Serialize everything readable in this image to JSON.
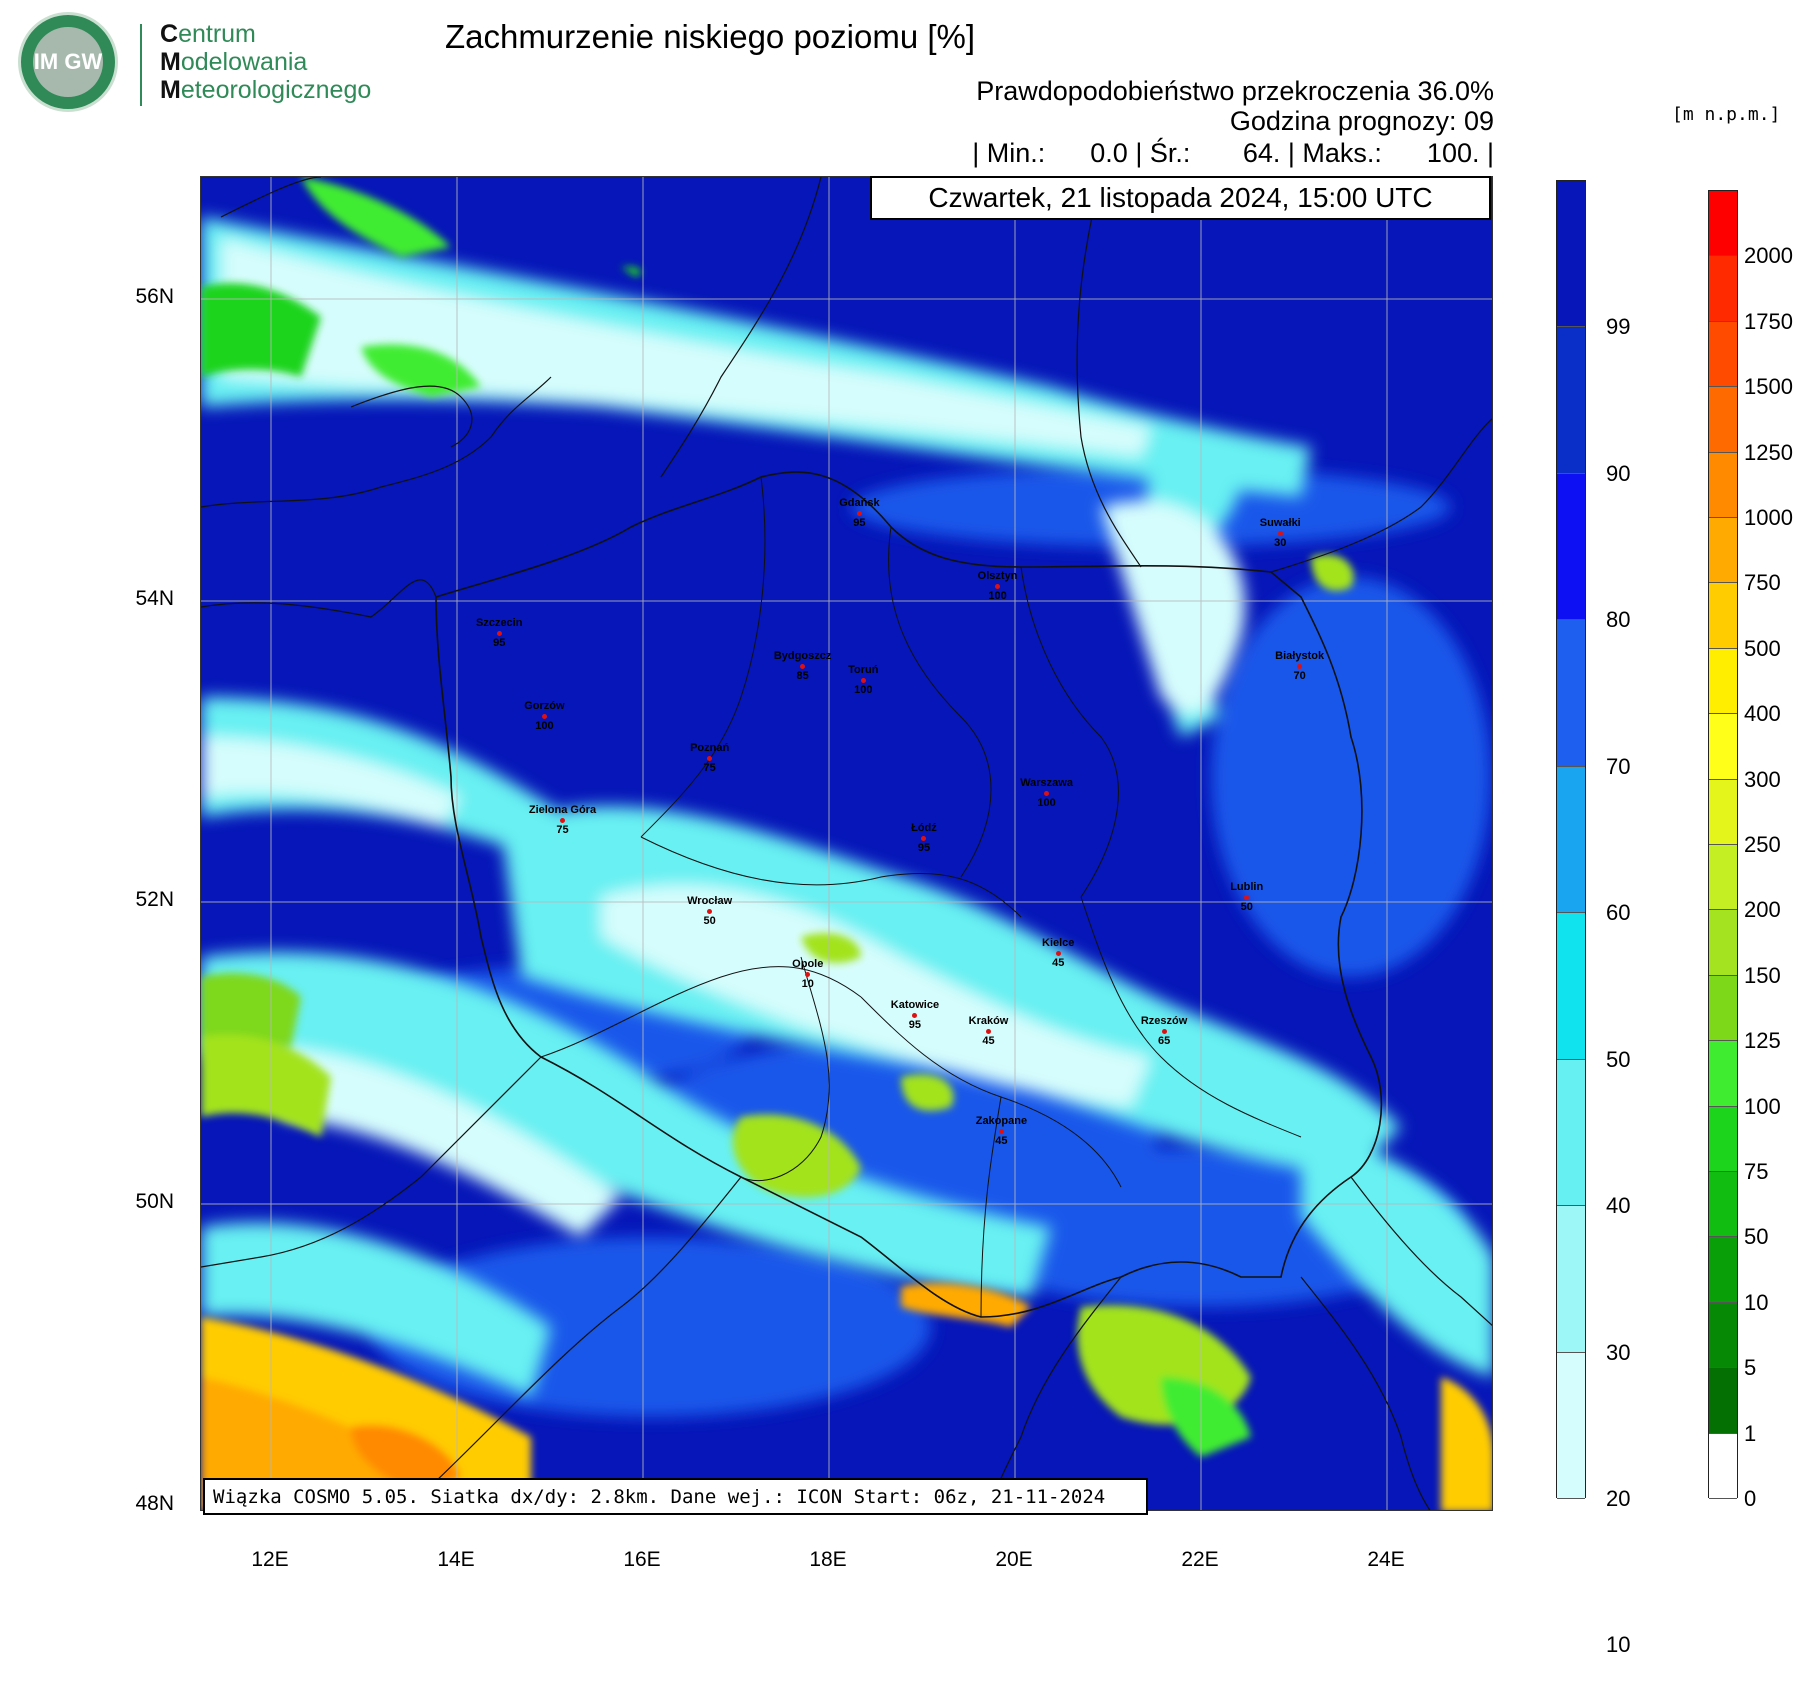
{
  "logo": {
    "mark": "IM GW",
    "line1_initial": "C",
    "line1_rest": "entrum",
    "line2_initial": "M",
    "line2_rest": "odelowania",
    "line3_initial": "M",
    "line3_rest": "eteorologicznego"
  },
  "title": "Zachmurzenie niskiego poziomu [%]",
  "probability_line": "Prawdopodobieństwo przekroczenia 36.0%",
  "forecast_hour_line": "Godzina prognozy: 09",
  "stats_line": "| Min.:      0.0 | Śr.:       64. | Maks.:      100. |",
  "date_line": "Czwartek, 21 listopada 2024, 15:00 UTC",
  "footer_line": "Wiązka COSMO 5.05. Siatka dx/dy: 2.8km. Dane wej.: ICON Start: 06z, 21-11-2024",
  "units_label": "[m n.p.m.]",
  "lat_ticks": [
    "56N",
    "54N",
    "52N",
    "50N",
    "48N"
  ],
  "lon_ticks": [
    "12E",
    "14E",
    "16E",
    "18E",
    "20E",
    "22E",
    "24E"
  ],
  "cloud_legend": {
    "labels": [
      "99",
      "90",
      "80",
      "70",
      "60",
      "50",
      "40",
      "30",
      "20",
      "10"
    ],
    "colors": [
      "#0616b8",
      "#0a2fc8",
      "#0c10f2",
      "#1f5ff0",
      "#19a5f0",
      "#10e3ee",
      "#67f0f2",
      "#9ef7f7",
      "#d6fdfd"
    ]
  },
  "terrain_legend": {
    "labels": [
      "2000",
      "1750",
      "1500",
      "1250",
      "1000",
      "750",
      "500",
      "400",
      "300",
      "250",
      "200",
      "150",
      "125",
      "100",
      "75",
      "50",
      "10",
      "5",
      "1",
      "0"
    ],
    "colors": [
      "#ff0000",
      "#ff2a00",
      "#ff4b00",
      "#ff6a00",
      "#ff8a00",
      "#ffaa00",
      "#ffcc00",
      "#ffee00",
      "#ffff1a",
      "#e3f51a",
      "#c4ef22",
      "#a3e31f",
      "#7ed81a",
      "#40ec30",
      "#1cd41c",
      "#10bd10",
      "#089f08",
      "#068a06",
      "#047004",
      "#ffffff"
    ]
  },
  "cities": [
    {
      "name": "Gdańsk",
      "value": "95"
    },
    {
      "name": "Suwałki",
      "value": "30"
    },
    {
      "name": "Olsztyn",
      "value": "100"
    },
    {
      "name": "Szczecin",
      "value": "95"
    },
    {
      "name": "Bydgoszcz",
      "value": "85"
    },
    {
      "name": "Toruń",
      "value": "100"
    },
    {
      "name": "Białystok",
      "value": "70"
    },
    {
      "name": "Gorzów",
      "value": "100"
    },
    {
      "name": "Poznań",
      "value": "75"
    },
    {
      "name": "Warszawa",
      "value": "100"
    },
    {
      "name": "Zielona Góra",
      "value": "75"
    },
    {
      "name": "Łódź",
      "value": "95"
    },
    {
      "name": "Wrocław",
      "value": "50"
    },
    {
      "name": "Lublin",
      "value": "50"
    },
    {
      "name": "Kielce",
      "value": "45"
    },
    {
      "name": "Opole",
      "value": "10"
    },
    {
      "name": "Katowice",
      "value": "95"
    },
    {
      "name": "Kraków",
      "value": "45"
    },
    {
      "name": "Rzeszów",
      "value": "65"
    },
    {
      "name": "Zakopane",
      "value": "45"
    }
  ]
}
